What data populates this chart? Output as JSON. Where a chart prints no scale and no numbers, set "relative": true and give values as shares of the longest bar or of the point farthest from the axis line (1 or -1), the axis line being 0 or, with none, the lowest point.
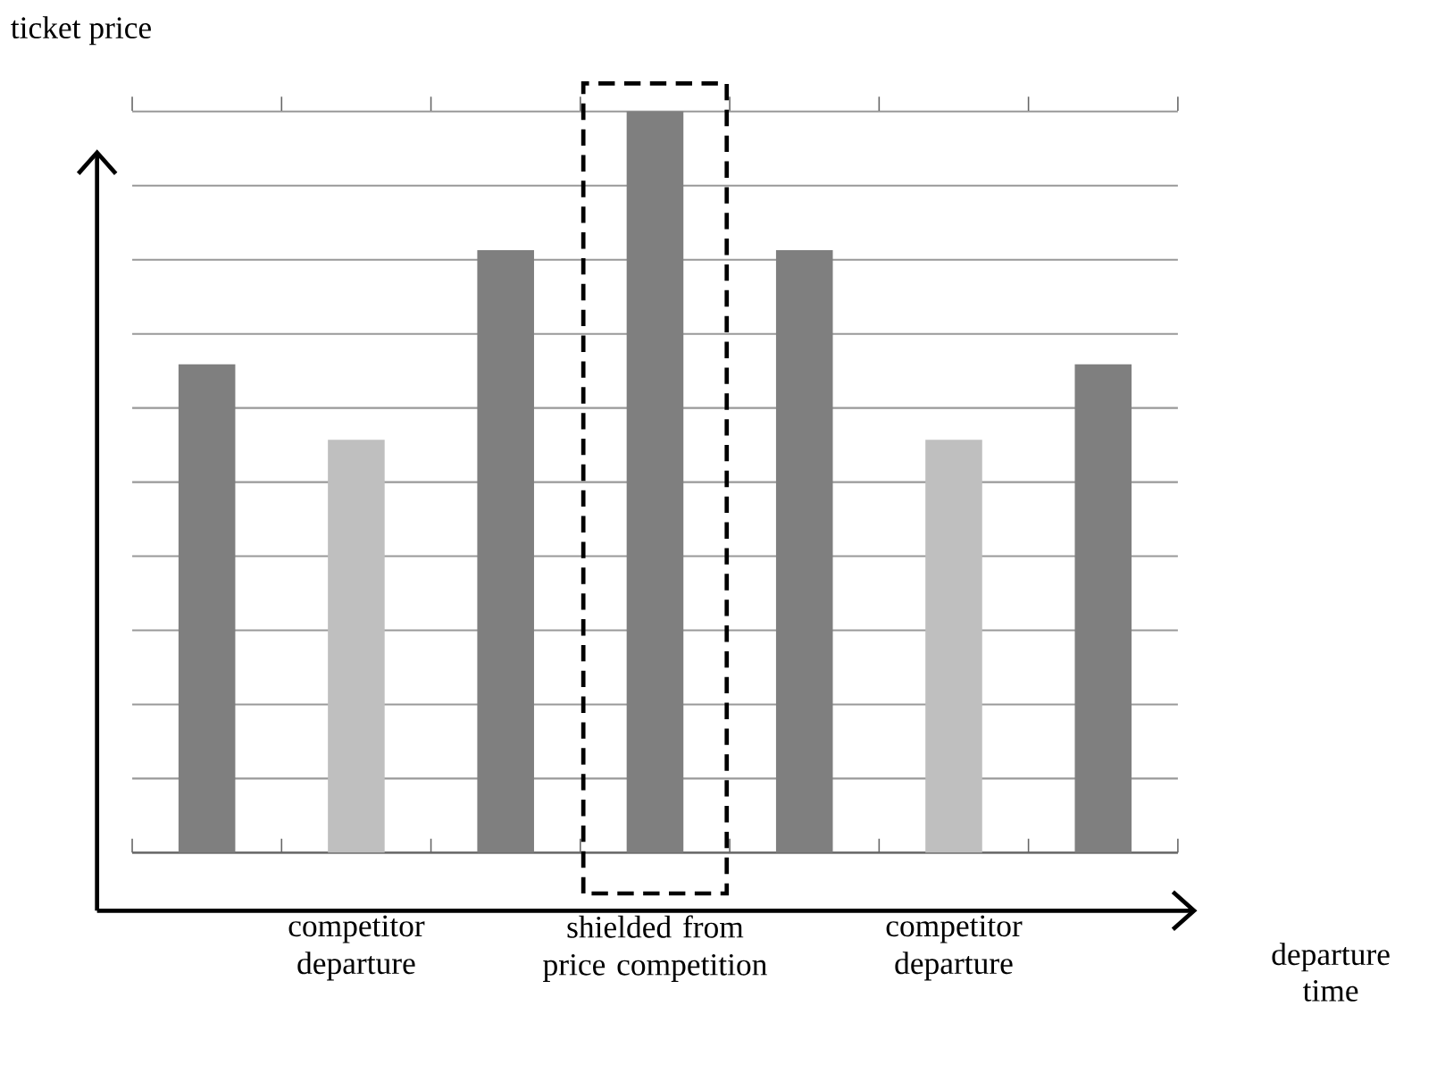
{
  "chart_data": {
    "type": "bar",
    "relative": true,
    "annotations": [
      "departure time"
    ],
    "ylabel": "ticket price",
    "categories": [
      null,
      "competitor departure",
      null,
      "shielded from price competition",
      null,
      "competitor departure",
      null
    ],
    "values": [
      0.659,
      0.557,
      0.813,
      1,
      0.813,
      0.557,
      0.659
    ],
    "colors": [
      "#7f7f7f",
      "#bfbfbf",
      "#7f7f7f",
      "#7f7f7f",
      "#7f7f7f",
      "#bfbfbf",
      "#7f7f7f"
    ],
    "grid": "y"
  }
}
